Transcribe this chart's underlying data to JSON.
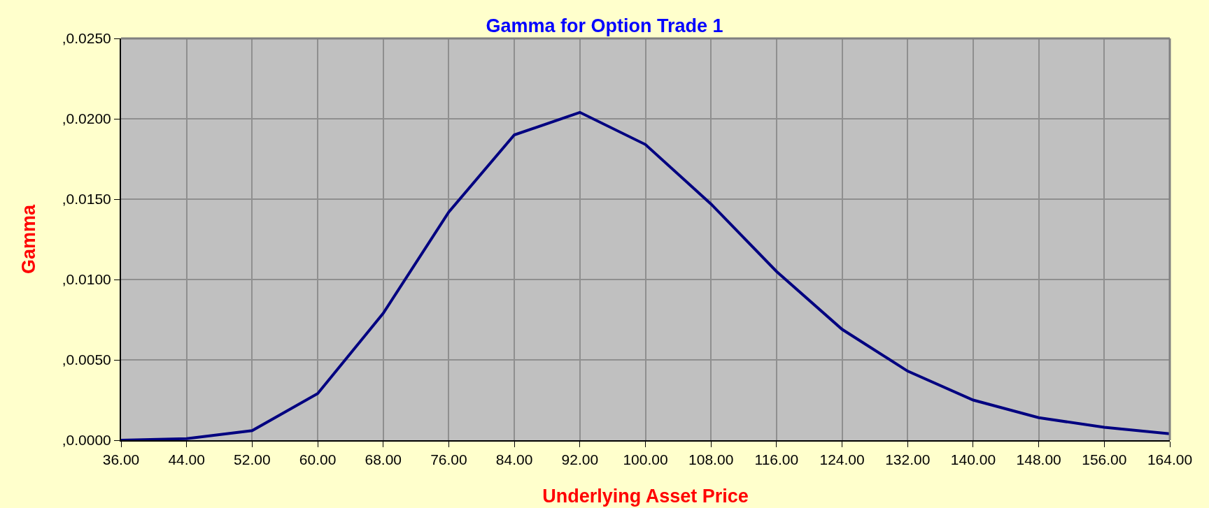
{
  "chart_data": {
    "type": "line",
    "title": "Gamma for Option Trade 1",
    "xlabel": "Underlying Asset Price",
    "ylabel": "Gamma",
    "x": [
      36,
      44,
      52,
      60,
      68,
      76,
      84,
      92,
      100,
      108,
      116,
      124,
      132,
      140,
      148,
      156,
      164
    ],
    "series": [
      {
        "color": "#000080",
        "values": [
          0.0,
          0.0001,
          0.0006,
          0.0029,
          0.0079,
          0.0142,
          0.019,
          0.0204,
          0.0184,
          0.0147,
          0.0105,
          0.0069,
          0.0043,
          0.0025,
          0.0014,
          0.0008,
          0.0004
        ]
      }
    ],
    "xlim": [
      36,
      164
    ],
    "xticks": [
      {
        "value": 36,
        "label": "36.00"
      },
      {
        "value": 44,
        "label": "44.00"
      },
      {
        "value": 52,
        "label": "52.00"
      },
      {
        "value": 60,
        "label": "60.00"
      },
      {
        "value": 68,
        "label": "68.00"
      },
      {
        "value": 76,
        "label": "76.00"
      },
      {
        "value": 84,
        "label": "84.00"
      },
      {
        "value": 92,
        "label": "92.00"
      },
      {
        "value": 100,
        "label": "100.00"
      },
      {
        "value": 108,
        "label": "108.00"
      },
      {
        "value": 116,
        "label": "116.00"
      },
      {
        "value": 124,
        "label": "124.00"
      },
      {
        "value": 132,
        "label": "132.00"
      },
      {
        "value": 140,
        "label": "140.00"
      },
      {
        "value": 148,
        "label": "148.00"
      },
      {
        "value": 156,
        "label": "156.00"
      },
      {
        "value": 164,
        "label": "164.00"
      }
    ],
    "ylim": [
      0,
      0.025
    ],
    "yticks": [
      {
        "value": 0,
        "label": ",0.0000"
      },
      {
        "value": 0.005,
        "label": ",0.0050"
      },
      {
        "value": 0.01,
        "label": ",0.0100"
      },
      {
        "value": 0.015,
        "label": ",0.0150"
      },
      {
        "value": 0.02,
        "label": ",0.0200"
      },
      {
        "value": 0.025,
        "label": ",0.0250"
      }
    ],
    "grid": true,
    "marker": "none",
    "line_style": "solid"
  }
}
